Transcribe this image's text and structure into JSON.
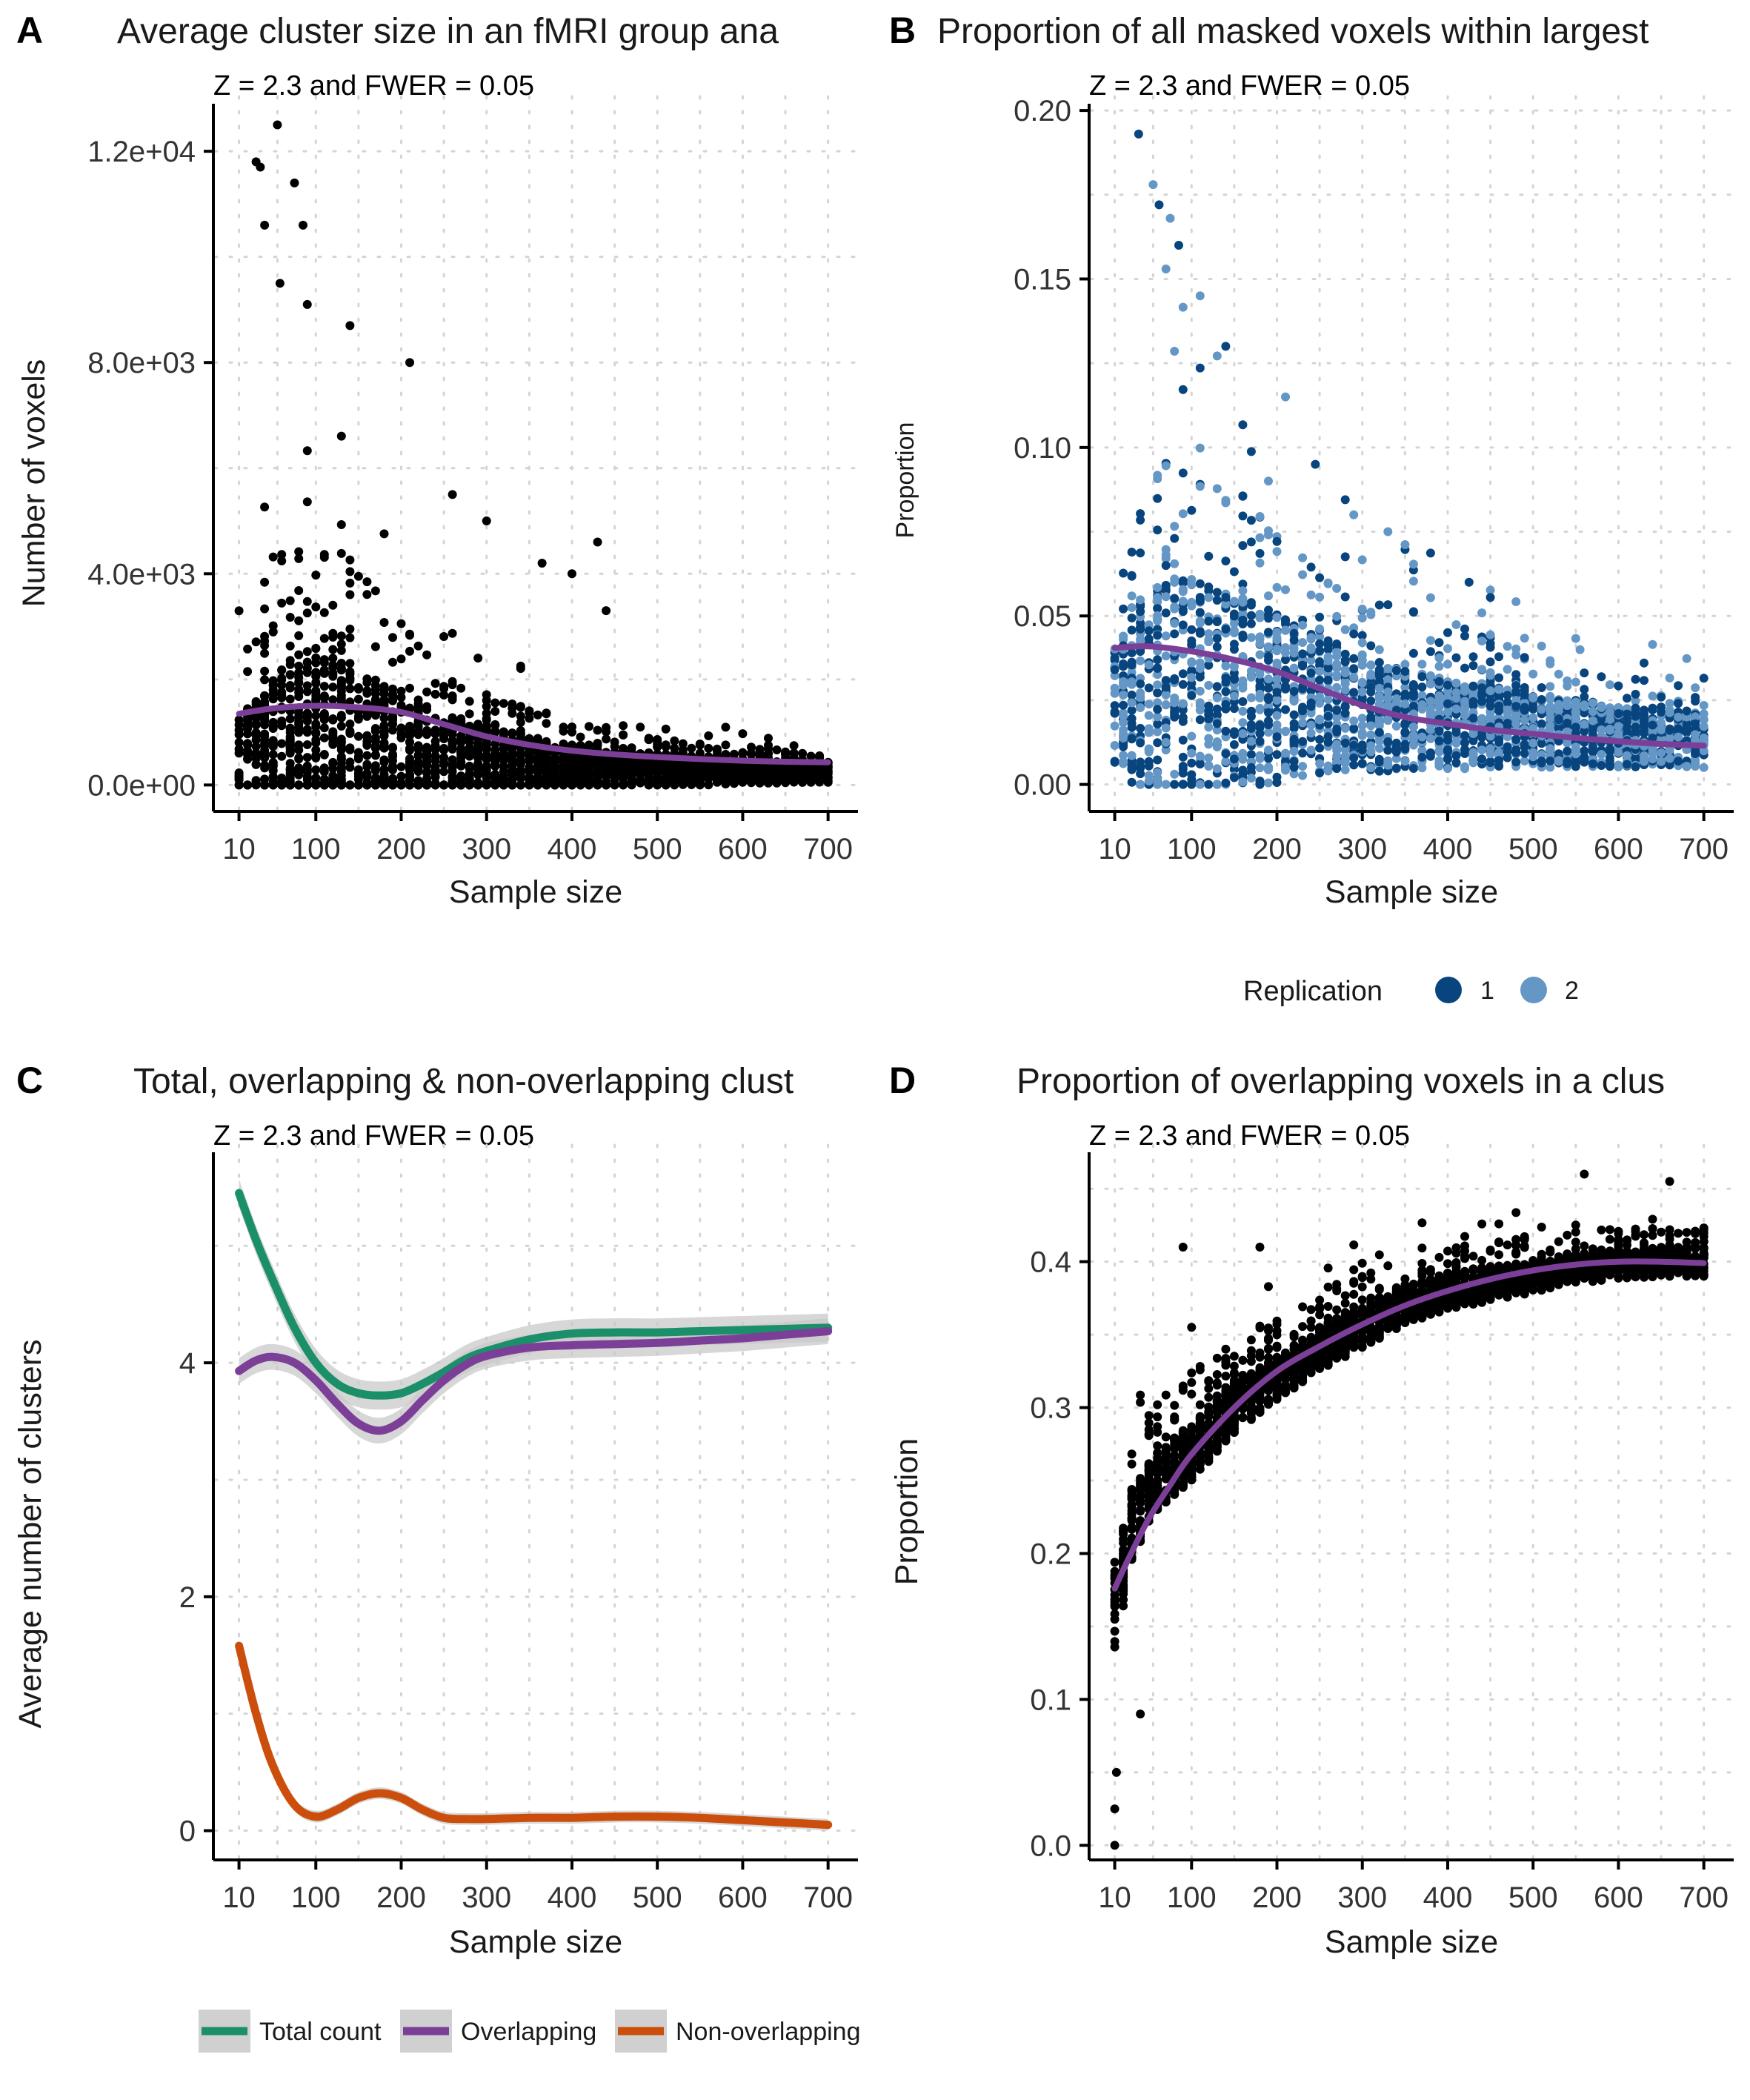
{
  "chart_data": [
    {
      "panel_label": "A",
      "type": "scatter",
      "title": "Average cluster size in an fMRI group ana",
      "subtitle": "Z = 2.3 and FWER = 0.05",
      "xlabel": "Sample size",
      "ylabel": "Number of voxels",
      "x_ticks": [
        10,
        100,
        200,
        300,
        400,
        500,
        600,
        700
      ],
      "y_ticks": [
        "0.0e+00",
        "4.0e+03",
        "8.0e+03",
        "1.2e+04"
      ],
      "y_tick_values": [
        0,
        4000,
        8000,
        12000
      ],
      "xlim": [
        -20,
        735
      ],
      "ylim": [
        -500,
        12900
      ],
      "grid": "dotted",
      "point_color": "#000000",
      "smooth_color": "#7B3F98",
      "profile": {
        "x": [
          10,
          40,
          70,
          100,
          140,
          180,
          220,
          260,
          300,
          350,
          400,
          450,
          500,
          550,
          600,
          650,
          700
        ],
        "center": [
          600,
          650,
          700,
          700,
          680,
          640,
          560,
          480,
          420,
          360,
          320,
          300,
          280,
          270,
          260,
          250,
          240
        ],
        "spread": [
          1500,
          2200,
          3500,
          3800,
          3300,
          2600,
          2000,
          1700,
          1400,
          1100,
          900,
          750,
          650,
          550,
          480,
          420,
          380
        ],
        "tail": [
          3500,
          5500,
          7500,
          7000,
          6000,
          5000,
          3500,
          2800,
          2200,
          1800,
          1500,
          1200,
          1000,
          900,
          800,
          700,
          650
        ]
      },
      "outliers": [
        {
          "x": 55,
          "y": 12500
        },
        {
          "x": 35,
          "y": 11700
        },
        {
          "x": 30,
          "y": 11800
        },
        {
          "x": 75,
          "y": 11400
        },
        {
          "x": 40,
          "y": 10600
        },
        {
          "x": 85,
          "y": 10600
        },
        {
          "x": 58,
          "y": 9500
        },
        {
          "x": 90,
          "y": 9100
        },
        {
          "x": 140,
          "y": 8700
        },
        {
          "x": 210,
          "y": 8000
        },
        {
          "x": 430,
          "y": 4600
        },
        {
          "x": 400,
          "y": 4000
        },
        {
          "x": 440,
          "y": 3300
        },
        {
          "x": 365,
          "y": 4200
        },
        {
          "x": 300,
          "y": 5000
        },
        {
          "x": 260,
          "y": 5500
        }
      ],
      "point_count": 2600,
      "seed": 11,
      "smooth": {
        "x": [
          10,
          50,
          100,
          150,
          200,
          250,
          300,
          350,
          400,
          450,
          500,
          550,
          600,
          650,
          700
        ],
        "y": [
          1350,
          1450,
          1500,
          1470,
          1380,
          1150,
          920,
          760,
          650,
          580,
          530,
          490,
          460,
          440,
          430
        ]
      }
    },
    {
      "panel_label": "B",
      "type": "scatter",
      "title": "Proportion of all masked voxels within largest",
      "subtitle": "Z = 2.3 and FWER = 0.05",
      "xlabel": "Sample size",
      "ylabel": "Proportion",
      "x_ticks": [
        10,
        100,
        200,
        300,
        400,
        500,
        600,
        700
      ],
      "y_ticks": [
        "0.00",
        "0.05",
        "0.10",
        "0.15",
        "0.20"
      ],
      "y_tick_values": [
        0,
        0.05,
        0.1,
        0.15,
        0.2
      ],
      "xlim": [
        -20,
        735
      ],
      "ylim": [
        -0.008,
        0.202
      ],
      "grid": "dotted",
      "legend": {
        "title": "Replication",
        "placement": "bottom",
        "entries": [
          {
            "label": "1",
            "color": "#08457E"
          },
          {
            "label": "2",
            "color": "#6497C6"
          }
        ]
      },
      "smooth_color": "#7B3F98",
      "profile": {
        "x": [
          10,
          40,
          70,
          100,
          140,
          180,
          220,
          260,
          300,
          350,
          400,
          450,
          500,
          550,
          600,
          650,
          700
        ],
        "center": [
          0.022,
          0.025,
          0.027,
          0.027,
          0.027,
          0.026,
          0.025,
          0.023,
          0.021,
          0.019,
          0.018,
          0.017,
          0.016,
          0.015,
          0.014,
          0.014,
          0.013
        ],
        "spread": [
          0.035,
          0.06,
          0.07,
          0.07,
          0.06,
          0.055,
          0.045,
          0.04,
          0.035,
          0.03,
          0.027,
          0.024,
          0.022,
          0.02,
          0.018,
          0.017,
          0.016
        ],
        "tail": [
          0.06,
          0.11,
          0.13,
          0.12,
          0.1,
          0.09,
          0.075,
          0.065,
          0.06,
          0.055,
          0.05,
          0.045,
          0.04,
          0.035,
          0.03,
          0.027,
          0.025
        ]
      },
      "outliers": [
        {
          "x": 38,
          "y": 0.193
        },
        {
          "x": 55,
          "y": 0.178
        },
        {
          "x": 62,
          "y": 0.172
        },
        {
          "x": 75,
          "y": 0.168
        },
        {
          "x": 85,
          "y": 0.16
        },
        {
          "x": 110,
          "y": 0.145
        },
        {
          "x": 140,
          "y": 0.13
        },
        {
          "x": 210,
          "y": 0.115
        },
        {
          "x": 245,
          "y": 0.095
        },
        {
          "x": 330,
          "y": 0.075
        },
        {
          "x": 425,
          "y": 0.06
        },
        {
          "x": 555,
          "y": 0.04
        }
      ],
      "point_count": 2400,
      "seed": 29,
      "smooth": {
        "x": [
          10,
          50,
          100,
          150,
          200,
          250,
          300,
          350,
          400,
          450,
          500,
          550,
          600,
          650,
          700
        ],
        "y": [
          0.0405,
          0.041,
          0.0395,
          0.037,
          0.0335,
          0.0285,
          0.0235,
          0.02,
          0.018,
          0.0162,
          0.015,
          0.0138,
          0.0128,
          0.012,
          0.0115
        ]
      }
    },
    {
      "panel_label": "C",
      "type": "line",
      "title": "Total, overlapping & non-overlapping clust",
      "subtitle": "Z = 2.3 and FWER = 0.05",
      "xlabel": "Sample size",
      "ylabel": "Average number of clusters",
      "x_ticks": [
        10,
        100,
        200,
        300,
        400,
        500,
        600,
        700
      ],
      "y_ticks": [
        "0",
        "2",
        "4"
      ],
      "y_tick_values": [
        0,
        2,
        4
      ],
      "xlim": [
        -20,
        735
      ],
      "ylim": [
        -0.25,
        5.8
      ],
      "grid": "dotted",
      "legend": {
        "placement": "bottom",
        "entries": [
          {
            "label": "Total count",
            "color": "#1B8F6A"
          },
          {
            "label": "Overlapping",
            "color": "#7B3F98"
          },
          {
            "label": "Non-overlapping",
            "color": "#CC4E0C"
          }
        ]
      },
      "series": [
        {
          "name": "Total count",
          "color": "#1B8F6A",
          "x": [
            10,
            30,
            50,
            75,
            100,
            125,
            150,
            175,
            200,
            225,
            250,
            275,
            300,
            350,
            400,
            450,
            500,
            550,
            600,
            650,
            700
          ],
          "y": [
            5.45,
            5.05,
            4.7,
            4.3,
            4.0,
            3.82,
            3.74,
            3.72,
            3.74,
            3.82,
            3.92,
            4.03,
            4.1,
            4.2,
            4.25,
            4.26,
            4.26,
            4.27,
            4.28,
            4.29,
            4.3
          ],
          "band": 0.12
        },
        {
          "name": "Overlapping",
          "color": "#7B3F98",
          "x": [
            10,
            30,
            50,
            75,
            100,
            125,
            150,
            175,
            200,
            225,
            250,
            275,
            300,
            350,
            400,
            450,
            500,
            550,
            600,
            650,
            700
          ],
          "y": [
            3.93,
            4.02,
            4.05,
            4.0,
            3.85,
            3.65,
            3.48,
            3.42,
            3.5,
            3.68,
            3.85,
            3.98,
            4.06,
            4.13,
            4.15,
            4.16,
            4.17,
            4.19,
            4.21,
            4.24,
            4.27
          ],
          "band": 0.11
        },
        {
          "name": "Non-overlapping",
          "color": "#CC4E0C",
          "x": [
            10,
            30,
            50,
            75,
            100,
            125,
            150,
            175,
            200,
            225,
            250,
            275,
            300,
            350,
            400,
            450,
            500,
            550,
            600,
            650,
            700
          ],
          "y": [
            1.58,
            1.0,
            0.55,
            0.22,
            0.12,
            0.18,
            0.28,
            0.32,
            0.28,
            0.18,
            0.11,
            0.1,
            0.1,
            0.11,
            0.11,
            0.12,
            0.12,
            0.11,
            0.09,
            0.07,
            0.05
          ],
          "band": 0.05
        }
      ]
    },
    {
      "panel_label": "D",
      "type": "scatter",
      "title": "Proportion of overlapping voxels in a clus",
      "subtitle": "Z = 2.3 and FWER = 0.05",
      "xlabel": "Sample size",
      "ylabel": "Proportion",
      "x_ticks": [
        10,
        100,
        200,
        300,
        400,
        500,
        600,
        700
      ],
      "y_ticks": [
        "0.0",
        "0.1",
        "0.2",
        "0.3",
        "0.4"
      ],
      "y_tick_values": [
        0,
        0.1,
        0.2,
        0.3,
        0.4
      ],
      "xlim": [
        -20,
        735
      ],
      "ylim": [
        -0.01,
        0.475
      ],
      "grid": "dotted",
      "point_color": "#000000",
      "smooth_color": "#7B3F98",
      "profile": {
        "x": [
          10,
          30,
          60,
          100,
          150,
          200,
          250,
          300,
          350,
          400,
          450,
          500,
          550,
          600,
          650,
          700
        ],
        "center": [
          0.16,
          0.22,
          0.25,
          0.27,
          0.3,
          0.32,
          0.34,
          0.355,
          0.37,
          0.38,
          0.385,
          0.39,
          0.395,
          0.398,
          0.4,
          0.4
        ],
        "spread": [
          0.06,
          0.05,
          0.04,
          0.04,
          0.035,
          0.03,
          0.03,
          0.028,
          0.026,
          0.025,
          0.024,
          0.022,
          0.02,
          0.02,
          0.02,
          0.02
        ],
        "tail": [
          0.12,
          0.1,
          0.09,
          0.09,
          0.08,
          0.07,
          0.06,
          0.06,
          0.055,
          0.05,
          0.05,
          0.045,
          0.045,
          0.04,
          0.04,
          0.04
        ]
      },
      "outliers": [
        {
          "x": 10,
          "y": 0.0
        },
        {
          "x": 10,
          "y": 0.025
        },
        {
          "x": 12,
          "y": 0.05
        },
        {
          "x": 90,
          "y": 0.41
        },
        {
          "x": 180,
          "y": 0.41
        },
        {
          "x": 560,
          "y": 0.46
        },
        {
          "x": 660,
          "y": 0.455
        },
        {
          "x": 40,
          "y": 0.09
        }
      ],
      "point_count": 2600,
      "seed": 47,
      "smooth": {
        "x": [
          10,
          25,
          50,
          75,
          100,
          150,
          200,
          250,
          300,
          350,
          400,
          450,
          500,
          550,
          600,
          650,
          700
        ],
        "y": [
          0.176,
          0.195,
          0.224,
          0.247,
          0.268,
          0.3,
          0.325,
          0.342,
          0.357,
          0.37,
          0.38,
          0.388,
          0.394,
          0.398,
          0.4,
          0.4,
          0.399
        ]
      }
    }
  ]
}
